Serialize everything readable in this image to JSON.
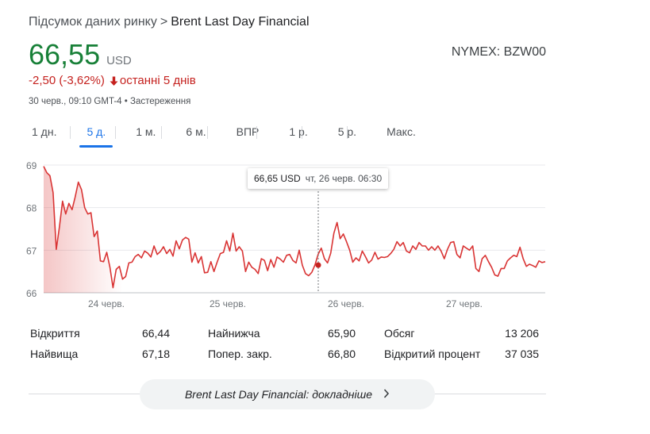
{
  "breadcrumb": {
    "parent": "Підсумок даних ринку",
    "separator": ">",
    "current": "Brent Last Day Financial"
  },
  "quote": {
    "price": "66,55",
    "currency": "USD",
    "ticker": "NYMEX: BZW00",
    "change": "-2,50 (-3,62%)",
    "period": "останні 5 днів",
    "timestamp": "30 черв., 09:10 GMT-4 • Застереження"
  },
  "colors": {
    "positive": "#188038",
    "negative": "#c5221f",
    "line": "#d93434",
    "accent": "#1a73e8"
  },
  "tabs": [
    {
      "label": "1 дн."
    },
    {
      "label": "5 д.",
      "active": true
    },
    {
      "label": "1 м."
    },
    {
      "label": "6 м."
    },
    {
      "label": "ВПР"
    },
    {
      "label": "1 р."
    },
    {
      "label": "5 р."
    },
    {
      "label": "Макс."
    }
  ],
  "tooltip": {
    "price": "66,65 USD",
    "time": "чт, 26 черв. 06:30"
  },
  "chart_data": {
    "type": "line",
    "ylim": [
      66,
      69
    ],
    "yticks": [
      66,
      67,
      68,
      69
    ],
    "ytick_labels": [
      "66",
      "67",
      "68",
      "69"
    ],
    "xtick_labels": [
      "24 черв.",
      "25 черв.",
      "26 черв.",
      "27 черв."
    ],
    "grid": true,
    "series": [
      {
        "values": [
          68.97,
          68.82,
          68.75,
          68.35,
          67.02,
          67.55,
          68.15,
          67.85,
          68.1,
          67.95,
          68.25,
          68.6,
          68.42,
          68.0,
          67.85,
          67.88,
          67.32,
          67.45,
          66.75,
          66.73,
          66.95,
          66.6,
          66.12,
          66.55,
          66.62,
          66.32,
          66.38,
          66.7,
          66.72,
          66.85,
          66.9,
          66.82,
          66.98,
          66.93,
          66.84,
          67.1,
          66.9,
          66.97,
          67.08,
          66.92,
          67.02,
          66.86,
          67.22,
          67.03,
          67.24,
          67.3,
          67.26,
          66.72,
          66.94,
          66.7,
          66.85,
          66.47,
          66.48,
          66.73,
          66.5,
          66.72,
          66.92,
          66.95,
          67.22,
          66.98,
          67.4,
          66.98,
          67.08,
          66.98,
          66.5,
          66.72,
          66.6,
          66.55,
          66.45,
          66.8,
          66.76,
          66.52,
          66.78,
          66.6,
          66.84,
          66.79,
          66.72,
          66.88,
          66.9,
          66.76,
          66.7,
          67.0,
          66.65,
          66.45,
          66.4,
          66.48,
          66.65,
          66.9,
          67.05,
          66.8,
          66.7,
          66.93,
          67.4,
          67.65,
          67.27,
          67.38,
          67.2,
          67.0,
          66.72,
          66.82,
          66.75,
          66.98,
          66.85,
          66.7,
          66.77,
          66.95,
          66.79,
          66.84,
          66.83,
          66.85,
          66.92,
          67.02,
          67.2,
          67.1,
          67.18,
          66.98,
          66.94,
          67.1,
          67.02,
          67.18,
          67.1,
          67.1,
          67.0,
          67.08,
          67.0,
          67.1,
          66.98,
          66.8,
          67.02,
          67.18,
          67.2,
          66.9,
          66.82,
          67.1,
          67.05,
          67.0,
          67.1,
          66.57,
          66.5,
          66.8,
          66.88,
          66.73,
          66.6,
          66.42,
          66.39,
          66.57,
          66.57,
          66.75,
          66.82,
          66.88,
          66.85,
          67.07,
          66.8,
          66.62,
          66.67,
          66.64,
          66.6,
          66.75,
          66.71,
          66.73
        ]
      }
    ],
    "hover_point": {
      "x": "чт, 26 черв. 06:30",
      "y": 66.65
    }
  },
  "stats": [
    {
      "label": "Відкриття",
      "value": "66,44"
    },
    {
      "label": "Найвища",
      "value": "67,18"
    },
    {
      "label": "Найнижча",
      "value": "65,90"
    },
    {
      "label": "Попер. закр.",
      "value": "66,80"
    },
    {
      "label": "Обсяг",
      "value": "13 206"
    },
    {
      "label": "Відкритий процент",
      "value": "37 035"
    }
  ],
  "more": {
    "label": "Brent Last Day Financial: докладніше",
    "chevron_icon": "chevron-right-icon"
  }
}
